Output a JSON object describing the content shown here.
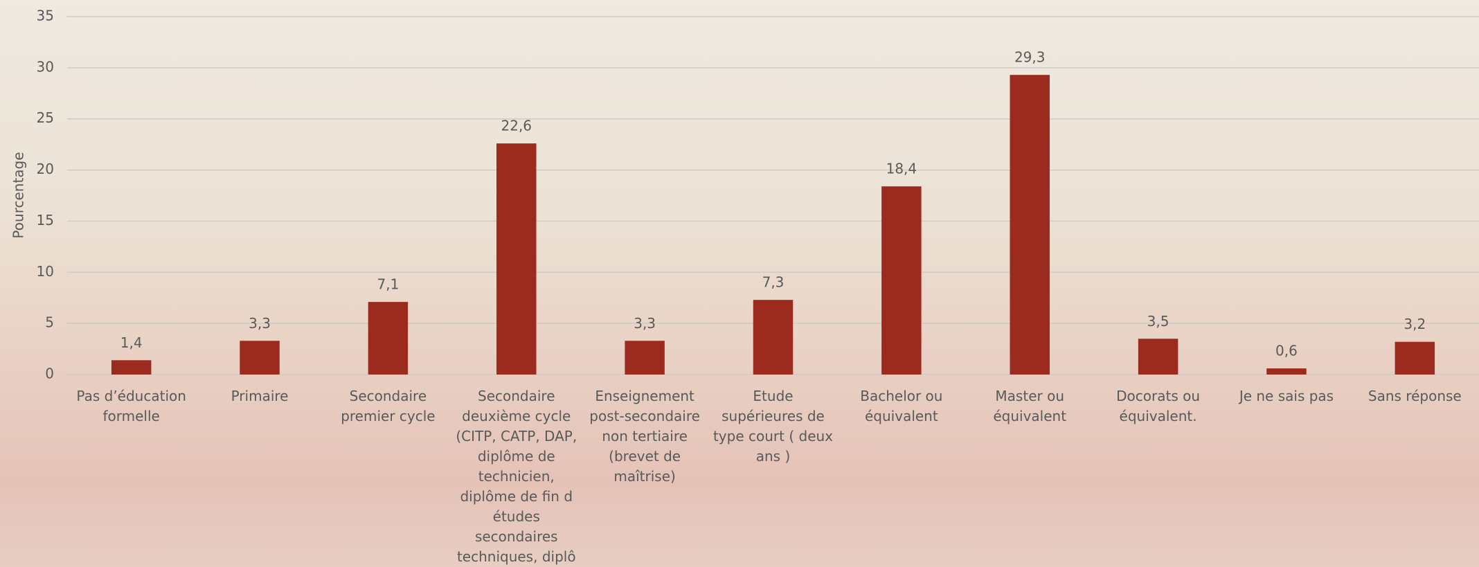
{
  "chart_data": {
    "type": "bar",
    "y_label": "Pourcentage",
    "categories": [
      "Pas d’éducation formelle",
      "Primaire",
      "Secondaire premier cycle",
      "Secondaire deuxième cycle (CITP, CATP, DAP, diplôme de technicien, diplôme de fin d études secondaires techniques, diplô",
      "Enseignement post-secondaire non tertiaire (brevet de maîtrise)",
      "Etude supérieures de type court ( deux ans )",
      "Bachelor ou équivalent",
      "Master ou équivalent",
      "Docorats ou équivalent.",
      "Je ne sais pas",
      "Sans réponse"
    ],
    "values": [
      1.4,
      3.3,
      7.1,
      22.6,
      3.3,
      7.3,
      18.4,
      29.3,
      3.5,
      0.6,
      3.2
    ],
    "value_labels": [
      "1,4",
      "3,3",
      "7,1",
      "22,6",
      "3,3",
      "7,3",
      "18,4",
      "29,3",
      "3,5",
      "0,6",
      "3,2"
    ],
    "color": "#9b2a1f",
    "ylim": [
      0,
      35
    ],
    "yticks": [
      0,
      5,
      10,
      15,
      20,
      25,
      30,
      35
    ],
    "grid": true
  }
}
